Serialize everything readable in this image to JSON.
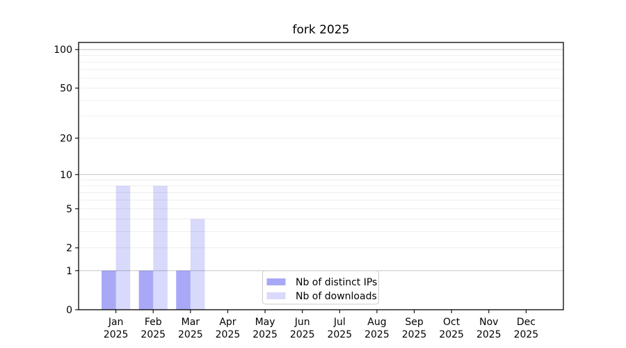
{
  "chart_data": {
    "type": "bar",
    "title": "fork 2025",
    "categories": [
      "Jan 2025",
      "Feb 2025",
      "Mar 2025",
      "Apr 2025",
      "May 2025",
      "Jun 2025",
      "Jul 2025",
      "Aug 2025",
      "Sep 2025",
      "Oct 2025",
      "Nov 2025",
      "Dec 2025"
    ],
    "series": [
      {
        "name": "Nb of distinct IPs",
        "color": "rgba(0,0,230,0.34)",
        "values": [
          1,
          1,
          1,
          0,
          0,
          0,
          0,
          0,
          0,
          0,
          0,
          0
        ]
      },
      {
        "name": "Nb of downloads",
        "color": "rgba(0,0,230,0.15)",
        "values": [
          8,
          8,
          4,
          0,
          0,
          0,
          0,
          0,
          0,
          0,
          0,
          0
        ]
      }
    ],
    "xlabel": "",
    "ylabel": "",
    "y_axis": {
      "scale": "log1p",
      "ticks": [
        0,
        1,
        2,
        5,
        10,
        20,
        50,
        100
      ],
      "minor_ticks": [
        3,
        4,
        6,
        7,
        8,
        9,
        30,
        40,
        60,
        70,
        80,
        90
      ],
      "ylim": [
        0,
        113.6
      ]
    },
    "grid": {
      "orientation": "horizontal",
      "emphasized_lines": [
        1,
        10,
        100
      ],
      "major_color": "#c4c4c4",
      "minor_color": "#ededed"
    },
    "legend": {
      "position": "lower center",
      "border_color": "#cccccc"
    },
    "frame_color": "#000000",
    "text_color": "#000000",
    "background_color": "#ffffff"
  }
}
